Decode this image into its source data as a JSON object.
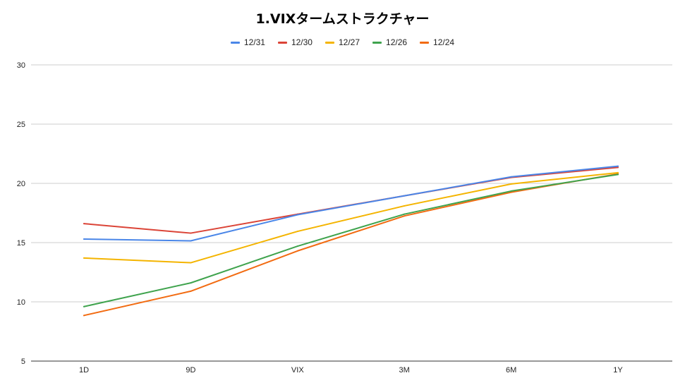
{
  "chart_data": {
    "type": "line",
    "title": "1.VIXタームストラクチャー",
    "xlabel": "",
    "ylabel": "",
    "categories": [
      "1D",
      "9D",
      "VIX",
      "3M",
      "6M",
      "1Y"
    ],
    "ylim": [
      5,
      30
    ],
    "yticks": [
      5,
      10,
      15,
      20,
      25,
      30
    ],
    "grid": true,
    "legend_position": "top",
    "series": [
      {
        "name": "12/31",
        "color": "#4a86e8",
        "values": [
          15.3,
          15.15,
          17.35,
          18.95,
          20.55,
          21.45
        ]
      },
      {
        "name": "12/30",
        "color": "#db4437",
        "values": [
          16.6,
          15.8,
          17.4,
          18.95,
          20.5,
          21.35
        ]
      },
      {
        "name": "12/27",
        "color": "#f4b400",
        "values": [
          13.7,
          13.3,
          15.95,
          18.1,
          19.95,
          20.9
        ]
      },
      {
        "name": "12/26",
        "color": "#3fa34d",
        "values": [
          9.6,
          11.6,
          14.7,
          17.4,
          19.35,
          20.75
        ]
      },
      {
        "name": "12/24",
        "color": "#f26b11",
        "values": [
          8.85,
          10.9,
          14.3,
          17.25,
          19.25,
          20.8
        ]
      }
    ]
  }
}
